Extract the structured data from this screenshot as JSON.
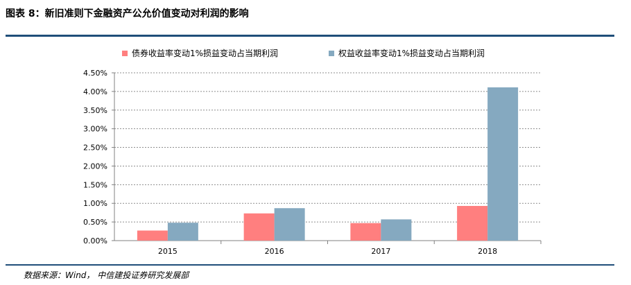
{
  "figure": {
    "title": "图表 8：新旧准则下金融资产公允价值变动对利润的影响",
    "source": "数据来源：Wind，   中信建投证券研究发展部"
  },
  "chart_data": {
    "type": "bar",
    "categories": [
      "2015",
      "2016",
      "2017",
      "2018"
    ],
    "series": [
      {
        "name": "债券收益率变动1%损益变动占当期利润",
        "values": [
          0.27,
          0.73,
          0.47,
          0.93
        ],
        "color": "#ff7f7f"
      },
      {
        "name": "权益收益率变动1%损益变动占当期利润",
        "values": [
          0.48,
          0.87,
          0.57,
          4.11
        ],
        "color": "#85a9c0"
      }
    ],
    "ylim": [
      0,
      4.5
    ],
    "yticks": [
      "0.00%",
      "0.50%",
      "1.00%",
      "1.50%",
      "2.00%",
      "2.50%",
      "3.00%",
      "3.50%",
      "4.00%",
      "4.50%"
    ],
    "ytick_values": [
      0,
      0.5,
      1.0,
      1.5,
      2.0,
      2.5,
      3.0,
      3.5,
      4.0,
      4.5
    ],
    "grid": true,
    "legend_position": "top",
    "title": "",
    "xlabel": "",
    "ylabel": ""
  }
}
